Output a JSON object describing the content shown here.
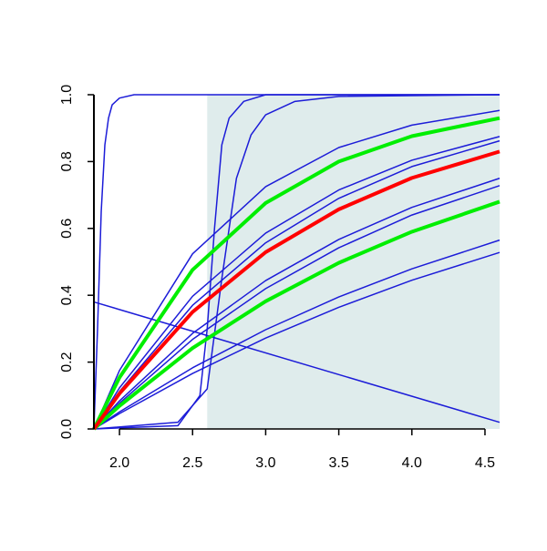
{
  "chart_data": {
    "type": "line",
    "xlim": [
      1.825,
      4.6
    ],
    "ylim": [
      0,
      1
    ],
    "xticks": [
      {
        "value": 2,
        "label": "2.0"
      },
      {
        "value": 2.5,
        "label": "2.5"
      },
      {
        "value": 3,
        "label": "3.0"
      },
      {
        "value": 3.5,
        "label": "3.5"
      },
      {
        "value": 4,
        "label": "4.0"
      },
      {
        "value": 4.5,
        "label": "4.5"
      }
    ],
    "yticks": [
      {
        "value": 0,
        "label": "0.0"
      },
      {
        "value": 0.2,
        "label": "0.2"
      },
      {
        "value": 0.4,
        "label": "0.4"
      },
      {
        "value": 0.6,
        "label": "0.6"
      },
      {
        "value": 0.8,
        "label": "0.8"
      },
      {
        "value": 1,
        "label": "1.0"
      }
    ],
    "shade": {
      "xlim": [
        2.6,
        4.6
      ],
      "ylim": [
        0,
        1
      ],
      "color": "#dfecec"
    },
    "series": [
      {
        "color": "#1c1cd8",
        "line_width": 1.5,
        "x": [
          1.825,
          1.85,
          1.875,
          1.9,
          1.925,
          1.95,
          2.0,
          2.1,
          4.6
        ],
        "values": [
          0,
          0.3,
          0.65,
          0.85,
          0.93,
          0.97,
          0.99,
          1,
          1
        ]
      },
      {
        "color": "#1c1cd8",
        "line_width": 1.5,
        "x": [
          1.825,
          2.4,
          2.55,
          2.6,
          2.65,
          2.7,
          2.75,
          2.85,
          3.0,
          4.6
        ],
        "values": [
          0,
          0.01,
          0.1,
          0.3,
          0.6,
          0.85,
          0.93,
          0.98,
          1,
          1
        ]
      },
      {
        "color": "#1c1cd8",
        "line_width": 1.5,
        "x": [
          1.825,
          2.4,
          2.6,
          2.7,
          2.8,
          2.9,
          3.0,
          3.2,
          3.5,
          4.6
        ],
        "values": [
          0,
          0.02,
          0.12,
          0.45,
          0.75,
          0.88,
          0.94,
          0.98,
          0.995,
          1
        ]
      },
      {
        "color": "#1c1cd8",
        "line_width": 1.5,
        "x": [
          1.825,
          4.6
        ],
        "values": [
          0.38,
          0.02
        ]
      },
      {
        "color": "#1c1cd8",
        "line_width": 1.5,
        "x": [
          1.825,
          2.0,
          2.5,
          3.0,
          3.5,
          4.0,
          4.6
        ],
        "values": [
          0,
          0.175,
          0.524,
          0.725,
          0.842,
          0.909,
          0.953
        ]
      },
      {
        "color": "#1c1cd8",
        "line_width": 1.5,
        "x": [
          1.825,
          2.0,
          2.5,
          3.0,
          3.5,
          4.0,
          4.6
        ],
        "values": [
          0,
          0.123,
          0.397,
          0.586,
          0.715,
          0.804,
          0.875
        ]
      },
      {
        "color": "#1c1cd8",
        "line_width": 1.5,
        "x": [
          1.825,
          2.0,
          2.5,
          3.0,
          3.5,
          4.0,
          4.6
        ],
        "values": [
          0,
          0.112,
          0.37,
          0.557,
          0.69,
          0.785,
          0.862
        ]
      },
      {
        "color": "#1c1cd8",
        "line_width": 1.5,
        "x": [
          1.825,
          2.0,
          2.5,
          3.0,
          3.5,
          4.0,
          4.6
        ],
        "values": [
          0,
          0.084,
          0.286,
          0.444,
          0.567,
          0.663,
          0.75
        ]
      },
      {
        "color": "#1c1cd8",
        "line_width": 1.5,
        "x": [
          1.825,
          2.0,
          2.5,
          3.0,
          3.5,
          4.0,
          4.6
        ],
        "values": [
          0,
          0.077,
          0.268,
          0.42,
          0.542,
          0.64,
          0.728
        ]
      },
      {
        "color": "#1c1cd8",
        "line_width": 1.5,
        "x": [
          1.825,
          2.0,
          2.5,
          3.0,
          3.5,
          4.0,
          4.6
        ],
        "values": [
          0,
          0.051,
          0.183,
          0.297,
          0.395,
          0.479,
          0.565
        ]
      },
      {
        "color": "#1c1cd8",
        "line_width": 1.5,
        "x": [
          1.825,
          2.0,
          2.5,
          3.0,
          3.5,
          4.0,
          4.6
        ],
        "values": [
          0,
          0.046,
          0.166,
          0.272,
          0.364,
          0.445,
          0.528
        ]
      },
      {
        "color": "#00ee00",
        "line_width": 4,
        "x": [
          1.825,
          2.0,
          2.5,
          3.0,
          3.5,
          4.0,
          4.6
        ],
        "values": [
          0,
          0.154,
          0.476,
          0.676,
          0.8,
          0.876,
          0.93
        ]
      },
      {
        "color": "#00ee00",
        "line_width": 4,
        "x": [
          1.825,
          2.0,
          2.5,
          3.0,
          3.5,
          4.0,
          4.6
        ],
        "values": [
          0,
          0.069,
          0.242,
          0.382,
          0.497,
          0.59,
          0.68
        ]
      },
      {
        "color": "#ff0000",
        "line_width": 4,
        "x": [
          1.825,
          2.0,
          2.5,
          3.0,
          3.5,
          4.0,
          4.6
        ],
        "values": [
          0,
          0.106,
          0.35,
          0.529,
          0.657,
          0.751,
          0.83
        ]
      }
    ]
  }
}
